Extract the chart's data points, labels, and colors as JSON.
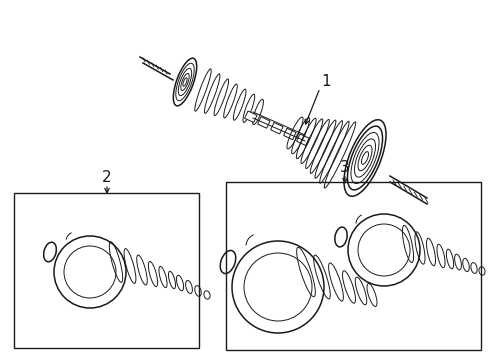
{
  "background_color": "#ffffff",
  "line_color": "#1a1a1a",
  "label1": "1",
  "label2": "2",
  "label3": "3",
  "fig_w": 4.9,
  "fig_h": 3.6,
  "dpi": 100
}
